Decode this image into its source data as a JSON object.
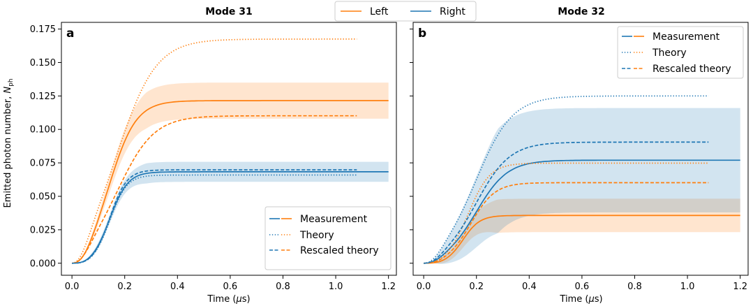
{
  "figure_legend": {
    "entries": [
      {
        "label": "Left",
        "color": "#ff7f0e"
      },
      {
        "label": "Right",
        "color": "#1f77b4"
      }
    ]
  },
  "colors": {
    "left": "#ff7f0e",
    "right": "#1f77b4"
  },
  "shared_ylabel": "Emitted photon number, N_ph",
  "chart_data": [
    {
      "type": "line",
      "panel_label": "a",
      "title": "Mode 31",
      "xlabel": "Time (μs)",
      "ylabel": "Emitted photon number, N_ph",
      "xlim": [
        -0.04,
        1.23
      ],
      "ylim": [
        -0.009,
        0.18
      ],
      "xticks": [
        0.0,
        0.2,
        0.4,
        0.6,
        0.8,
        1.0,
        1.2
      ],
      "xtick_labels": [
        "0.0",
        "0.2",
        "0.4",
        "0.6",
        "0.8",
        "1.0",
        "1.2"
      ],
      "yticks": [
        0.0,
        0.025,
        0.05,
        0.075,
        0.1,
        0.125,
        0.15,
        0.175
      ],
      "ytick_labels": [
        "0.000",
        "0.025",
        "0.050",
        "0.075",
        "0.100",
        "0.125",
        "0.150",
        "0.175"
      ],
      "legend": {
        "position": "lower right",
        "entries": [
          "Measurement",
          "Theory",
          "Rescaled theory"
        ]
      },
      "series": [
        {
          "name": "Left measurement",
          "color": "left",
          "style": "solid",
          "xmax": 1.2,
          "amplitude": 0.1215,
          "t0": 0.145,
          "tau": 0.11,
          "band": 0.0135
        },
        {
          "name": "Right measurement",
          "color": "right",
          "style": "solid",
          "xmax": 1.2,
          "amplitude": 0.0683,
          "t0": 0.145,
          "tau": 0.075,
          "band": 0.0075
        },
        {
          "name": "Left theory",
          "color": "left",
          "style": "dotted",
          "xmax": 1.08,
          "amplitude": 0.1675,
          "t0": 0.175,
          "tau": 0.16
        },
        {
          "name": "Right theory",
          "color": "right",
          "style": "dotted",
          "xmax": 1.08,
          "amplitude": 0.0659,
          "t0": 0.145,
          "tau": 0.07
        },
        {
          "name": "Left rescaled theory",
          "color": "left",
          "style": "dashed",
          "xmax": 1.08,
          "amplitude": 0.1102,
          "t0": 0.175,
          "tau": 0.15
        },
        {
          "name": "Right rescaled theory",
          "color": "right",
          "style": "dashed",
          "xmax": 1.08,
          "amplitude": 0.0698,
          "t0": 0.145,
          "tau": 0.07
        }
      ]
    },
    {
      "type": "line",
      "panel_label": "b",
      "title": "Mode 32",
      "xlabel": "Time (μs)",
      "ylabel": "",
      "xlim": [
        -0.04,
        1.23
      ],
      "ylim": [
        -0.009,
        0.18
      ],
      "xticks": [
        0.0,
        0.2,
        0.4,
        0.6,
        0.8,
        1.0,
        1.2
      ],
      "xtick_labels": [
        "0.0",
        "0.2",
        "0.4",
        "0.6",
        "0.8",
        "1.0",
        "1.2"
      ],
      "yticks": [
        0.0,
        0.025,
        0.05,
        0.075,
        0.1,
        0.125,
        0.15,
        0.175
      ],
      "ytick_labels": [],
      "legend": {
        "position": "upper right",
        "entries": [
          "Measurement",
          "Theory",
          "Rescaled theory"
        ]
      },
      "series": [
        {
          "name": "Left measurement",
          "color": "left",
          "style": "solid",
          "xmax": 1.2,
          "amplitude": 0.0357,
          "t0": 0.15,
          "tau": 0.07,
          "band": 0.0125
        },
        {
          "name": "Right measurement",
          "color": "right",
          "style": "solid",
          "xmax": 1.2,
          "amplitude": 0.077,
          "t0": 0.2,
          "tau": 0.13,
          "band": 0.039
        },
        {
          "name": "Left theory",
          "color": "left",
          "style": "dotted",
          "xmax": 1.08,
          "amplitude": 0.0748,
          "t0": 0.17,
          "tau": 0.09
        },
        {
          "name": "Right theory",
          "color": "right",
          "style": "dotted",
          "xmax": 1.08,
          "amplitude": 0.125,
          "t0": 0.2,
          "tau": 0.15
        },
        {
          "name": "Left rescaled theory",
          "color": "left",
          "style": "dashed",
          "xmax": 1.08,
          "amplitude": 0.0602,
          "t0": 0.18,
          "tau": 0.1
        },
        {
          "name": "Right rescaled theory",
          "color": "right",
          "style": "dashed",
          "xmax": 1.08,
          "amplitude": 0.0905,
          "t0": 0.2,
          "tau": 0.14
        }
      ]
    }
  ]
}
